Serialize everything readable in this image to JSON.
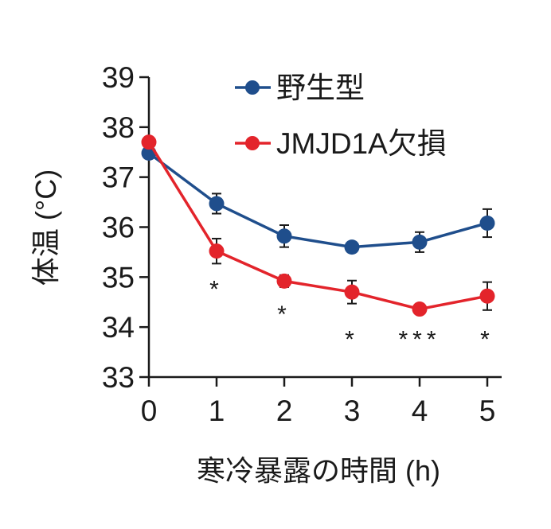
{
  "chart_data": {
    "type": "line",
    "title": "",
    "xlabel": "寒冷暴露の時間 (h)",
    "ylabel": "体温 (°C)",
    "x": [
      0,
      1,
      2,
      3,
      4,
      5
    ],
    "xticks": [
      "0",
      "1",
      "2",
      "3",
      "4",
      "5"
    ],
    "yticks": [
      "33",
      "34",
      "35",
      "36",
      "37",
      "38",
      "39"
    ],
    "xlim": [
      0,
      5
    ],
    "ylim": [
      33,
      39
    ],
    "grid": false,
    "legend_position": "top-right",
    "series": [
      {
        "name": "野生型",
        "color": "#1f4e8c",
        "values": [
          37.48,
          36.47,
          35.82,
          35.6,
          35.7,
          36.08
        ],
        "errors": [
          0.1,
          0.2,
          0.22,
          0.1,
          0.2,
          0.28
        ]
      },
      {
        "name": "JMJD1A欠損",
        "color": "#e3242b",
        "values": [
          37.7,
          35.52,
          34.92,
          34.7,
          34.36,
          34.62
        ],
        "errors": [
          0.08,
          0.25,
          0.12,
          0.23,
          0.07,
          0.28
        ]
      }
    ],
    "annotations": [
      {
        "x": 1,
        "y": 34.95,
        "text": "*"
      },
      {
        "x": 2,
        "y": 34.45,
        "text": "*"
      },
      {
        "x": 3,
        "y": 33.95,
        "text": "*"
      },
      {
        "x": 4,
        "y": 33.95,
        "text": "***"
      },
      {
        "x": 5,
        "y": 33.95,
        "text": "*"
      }
    ]
  }
}
